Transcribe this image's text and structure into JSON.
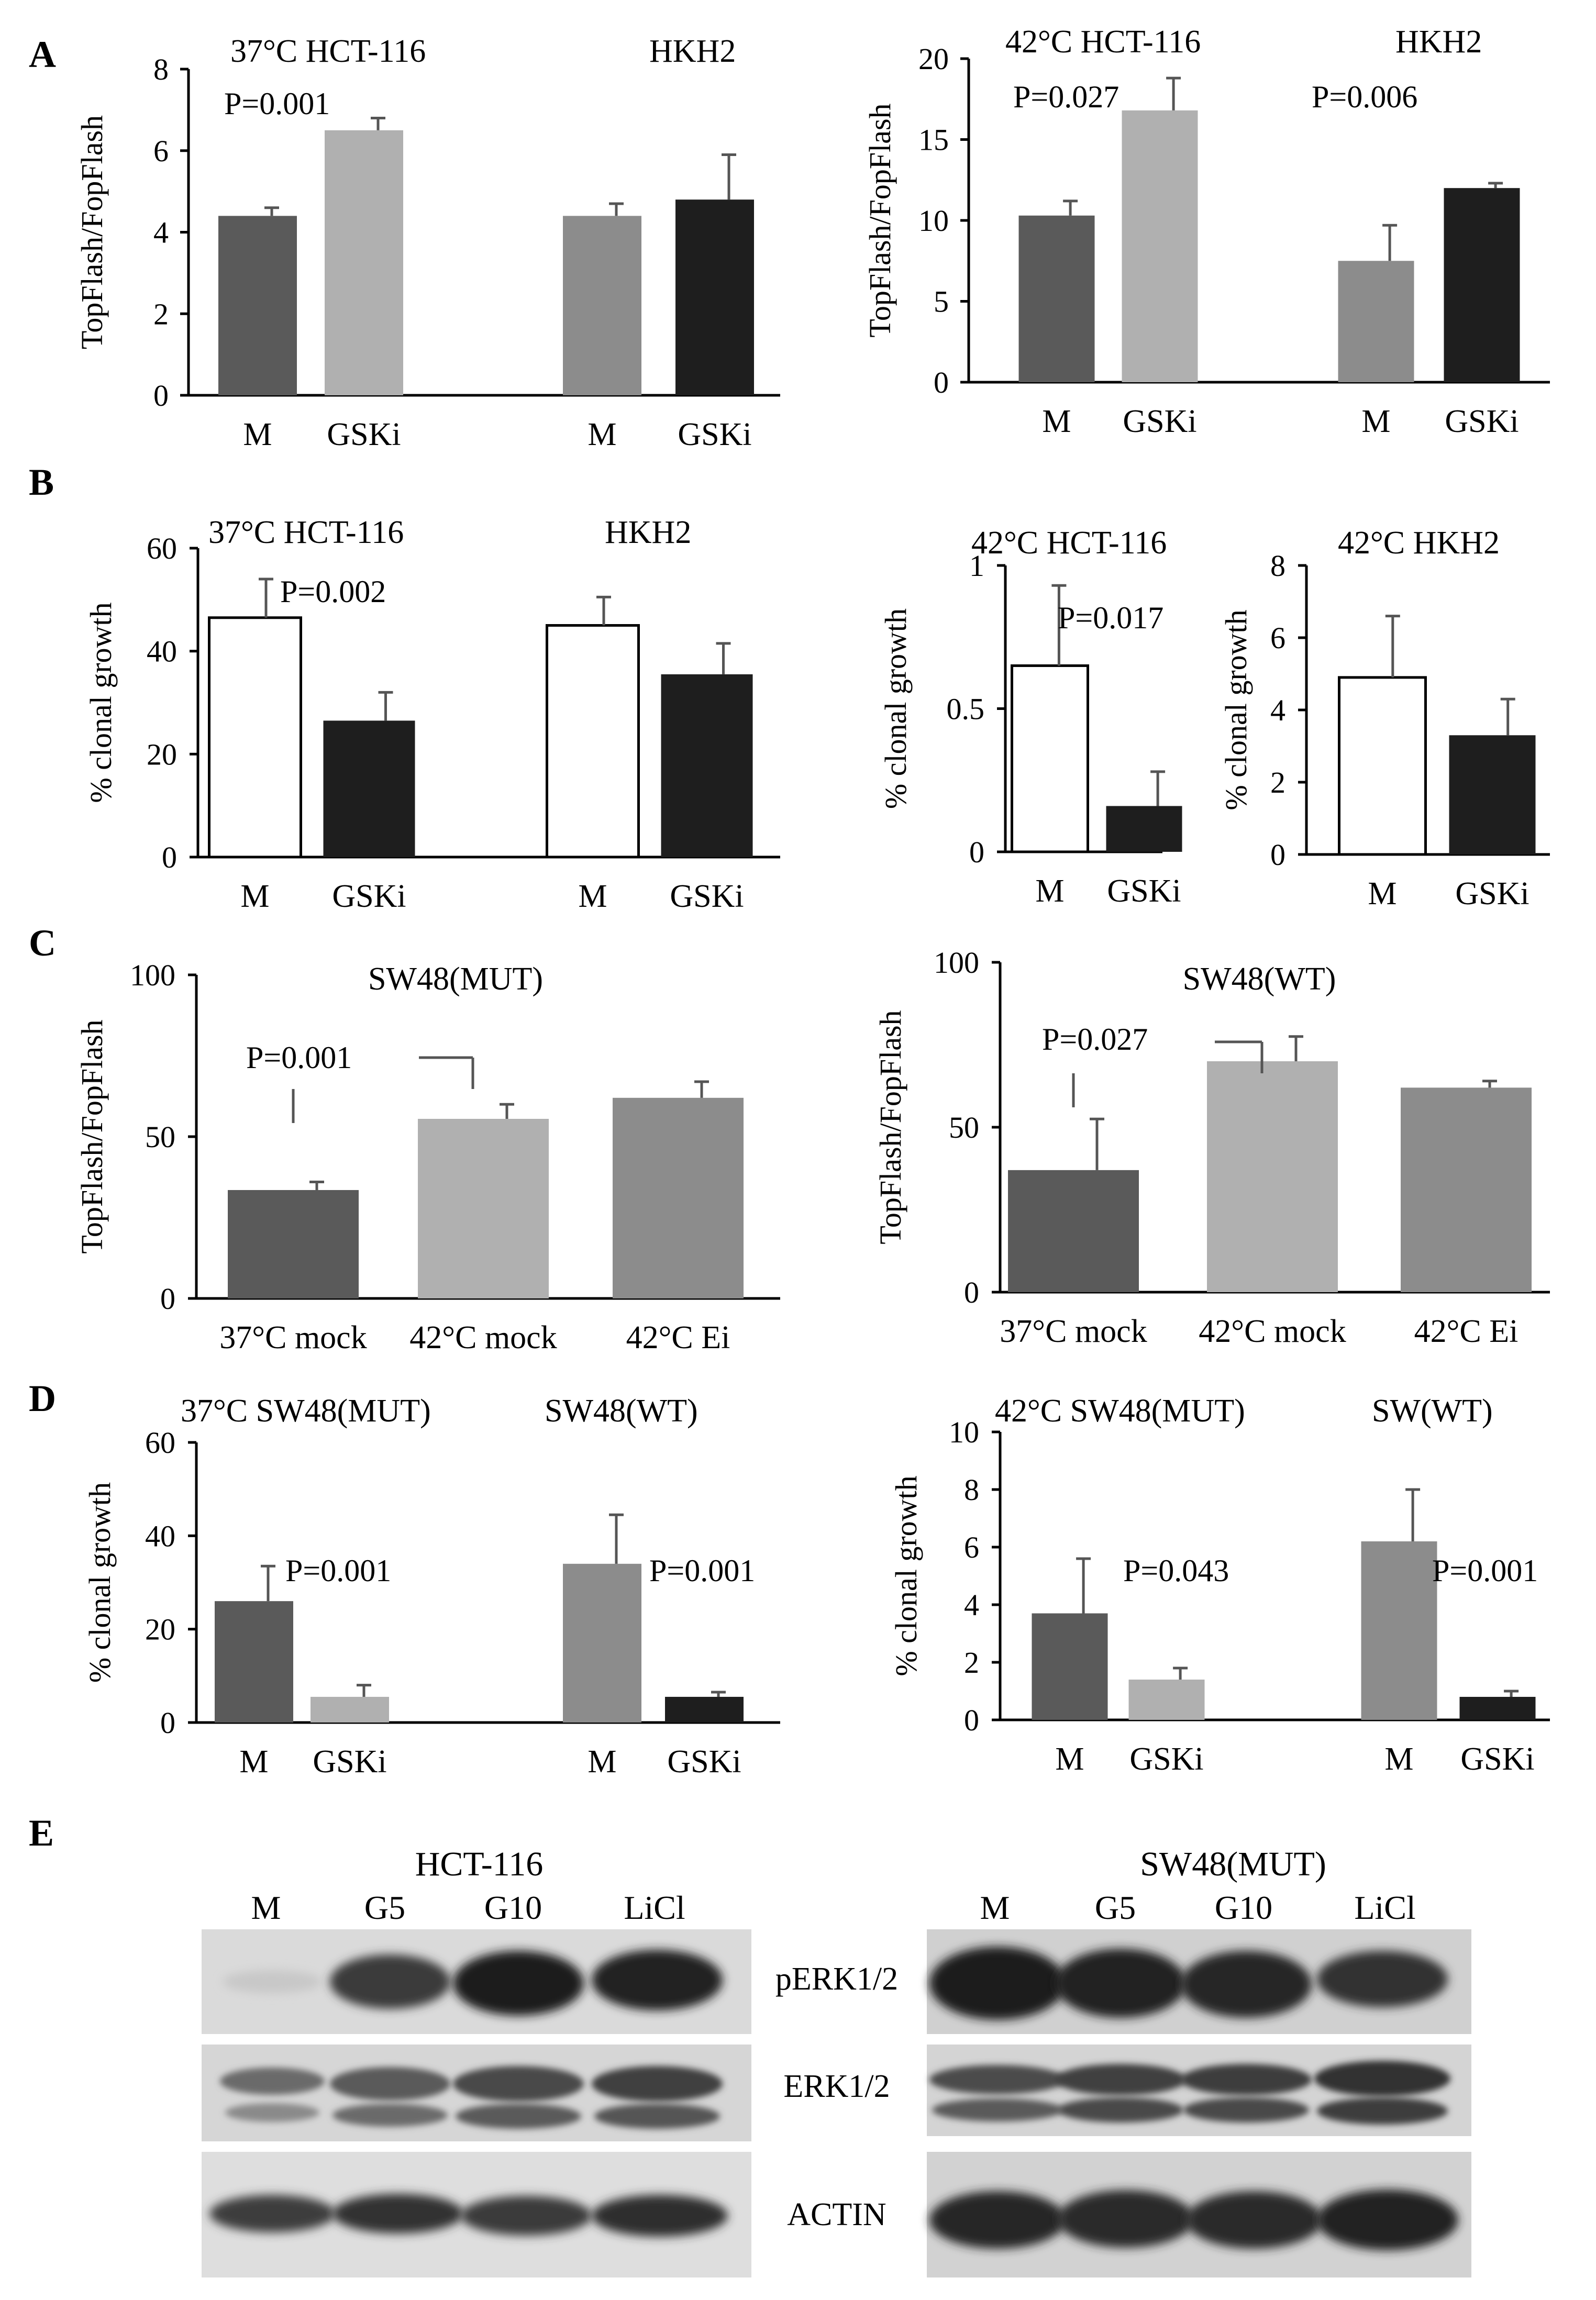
{
  "figure": {
    "panel_letters": [
      "A",
      "B",
      "C",
      "D",
      "E"
    ],
    "colors": {
      "dark": "#5a5a5a",
      "light": "#b0b0b0",
      "mid": "#8c8c8c",
      "black": "#1e1e1e",
      "white": "#ffffff"
    }
  },
  "chart_data": [
    {
      "id": "A-left",
      "type": "bar",
      "panel": "A",
      "ylabel": "TopFlash/FopFlash",
      "ylim": [
        0,
        8
      ],
      "yticks": [
        0,
        2,
        4,
        6,
        8
      ],
      "group_titles": [
        "37°C HCT-116",
        "HKH2"
      ],
      "annotations": [
        {
          "text": "P=0.001",
          "group": 0
        }
      ],
      "categories": [
        "M",
        "GSKi",
        "M",
        "GSKi"
      ],
      "values": [
        4.4,
        6.5,
        4.4,
        4.8
      ],
      "errors": [
        0.2,
        0.3,
        0.3,
        1.1
      ],
      "fills": [
        "dark",
        "light",
        "mid",
        "black"
      ]
    },
    {
      "id": "A-right",
      "type": "bar",
      "panel": "A",
      "ylabel": "TopFlash/FopFlash",
      "ylim": [
        0,
        20
      ],
      "yticks": [
        0,
        5,
        10,
        15,
        20
      ],
      "group_titles": [
        "42°C HCT-116",
        "HKH2"
      ],
      "annotations": [
        {
          "text": "P=0.027",
          "group": 0
        },
        {
          "text": "P=0.006",
          "group": 1
        }
      ],
      "categories": [
        "M",
        "GSKi",
        "M",
        "GSKi"
      ],
      "values": [
        10.3,
        16.8,
        7.5,
        12.0
      ],
      "errors": [
        0.9,
        2.0,
        2.2,
        0.3
      ],
      "fills": [
        "dark",
        "light",
        "mid",
        "black"
      ]
    },
    {
      "id": "B-left",
      "type": "bar",
      "panel": "B",
      "ylabel": "% clonal growth",
      "ylim": [
        0,
        60
      ],
      "yticks": [
        0,
        20,
        40,
        60
      ],
      "group_titles": [
        "37°C  HCT-116",
        "HKH2"
      ],
      "annotations": [
        {
          "text": "P=0.002",
          "group": 0
        }
      ],
      "categories": [
        "M",
        "GSKi",
        "M",
        "GSKi"
      ],
      "values": [
        46.5,
        26.5,
        45.0,
        35.5
      ],
      "errors": [
        7.5,
        5.5,
        5.5,
        6.0
      ],
      "fills": [
        "white",
        "black",
        "white",
        "black"
      ]
    },
    {
      "id": "B-mid",
      "type": "bar",
      "panel": "B",
      "ylabel": "% clonal growth",
      "ylim": [
        0,
        1
      ],
      "yticks": [
        0,
        0.5,
        1
      ],
      "group_titles": [
        "42°C HCT-116"
      ],
      "annotations": [
        {
          "text": "P=0.017",
          "group": 0
        }
      ],
      "categories": [
        "M",
        "GSKi"
      ],
      "values": [
        0.65,
        0.16
      ],
      "errors": [
        0.28,
        0.12
      ],
      "fills": [
        "white",
        "black"
      ]
    },
    {
      "id": "B-right",
      "type": "bar",
      "panel": "B",
      "ylabel": "% clonal growth",
      "ylim": [
        0,
        8
      ],
      "yticks": [
        0,
        2,
        4,
        6,
        8
      ],
      "group_titles": [
        "42°C  HKH2"
      ],
      "annotations": [],
      "categories": [
        "M",
        "GSKi"
      ],
      "values": [
        4.9,
        3.3
      ],
      "errors": [
        1.7,
        1.0
      ],
      "fills": [
        "white",
        "black"
      ]
    },
    {
      "id": "C-left",
      "type": "bar",
      "panel": "C",
      "ylabel": "TopFlash/FopFlash",
      "ylim": [
        0,
        100
      ],
      "yticks": [
        0,
        50,
        100
      ],
      "title": "SW48(MUT)",
      "bracket": {
        "text": "P=0.001",
        "from": 0,
        "to": 1
      },
      "categories": [
        "37°C mock",
        "42°C mock",
        "42°C Ei"
      ],
      "values": [
        33.5,
        55.5,
        62.0
      ],
      "errors": [
        2.5,
        4.5,
        5.0
      ],
      "fills": [
        "dark",
        "light",
        "mid"
      ]
    },
    {
      "id": "C-right",
      "type": "bar",
      "panel": "C",
      "ylabel": "TopFlash/FopFlash",
      "ylim": [
        0,
        100
      ],
      "yticks": [
        0,
        50,
        100
      ],
      "title": "SW48(WT)",
      "bracket": {
        "text": "P=0.027",
        "from": 0,
        "to": 1
      },
      "categories": [
        "37°C mock",
        "42°C mock",
        "42°C Ei"
      ],
      "values": [
        37.0,
        70.0,
        62.0
      ],
      "errors": [
        15.5,
        7.5,
        2.0
      ],
      "fills": [
        "dark",
        "light",
        "mid"
      ]
    },
    {
      "id": "D-left",
      "type": "bar",
      "panel": "D",
      "ylabel": "% clonal growth",
      "ylim": [
        0,
        60
      ],
      "yticks": [
        0,
        20,
        40,
        60
      ],
      "group_titles": [
        "37°C  SW48(MUT)",
        "SW48(WT)"
      ],
      "annotations": [
        {
          "text": "P=0.001",
          "group": 0
        },
        {
          "text": "P=0.001",
          "group": 1
        }
      ],
      "categories": [
        "M",
        "GSKi",
        "M",
        "GSKi"
      ],
      "values": [
        26.0,
        5.5,
        34.0,
        5.5
      ],
      "errors": [
        7.5,
        2.5,
        10.5,
        1.0
      ],
      "fills": [
        "dark",
        "light",
        "mid",
        "black"
      ]
    },
    {
      "id": "D-right",
      "type": "bar",
      "panel": "D",
      "ylabel": "% clonal growth",
      "ylim": [
        0,
        10
      ],
      "yticks": [
        0,
        2,
        4,
        6,
        8,
        10
      ],
      "group_titles": [
        "42°C  SW48(MUT)",
        "SW(WT)"
      ],
      "annotations": [
        {
          "text": "P=0.043",
          "group": 0
        },
        {
          "text": "P=0.001",
          "group": 1
        }
      ],
      "categories": [
        "M",
        "GSKi",
        "M",
        "GSKi"
      ],
      "values": [
        3.7,
        1.4,
        6.2,
        0.8
      ],
      "errors": [
        1.9,
        0.4,
        1.8,
        0.2
      ],
      "fills": [
        "dark",
        "light",
        "mid",
        "black"
      ]
    }
  ],
  "blots": {
    "panel": "E",
    "left": {
      "title": "HCT-116",
      "lanes": [
        "M",
        "G5",
        "G10",
        "LiCl"
      ]
    },
    "right": {
      "title": "SW48(MUT)",
      "lanes": [
        "M",
        "G5",
        "G10",
        "LiCl"
      ]
    },
    "row_labels": [
      "pERK1/2",
      "ERK1/2",
      "ACTIN"
    ]
  }
}
